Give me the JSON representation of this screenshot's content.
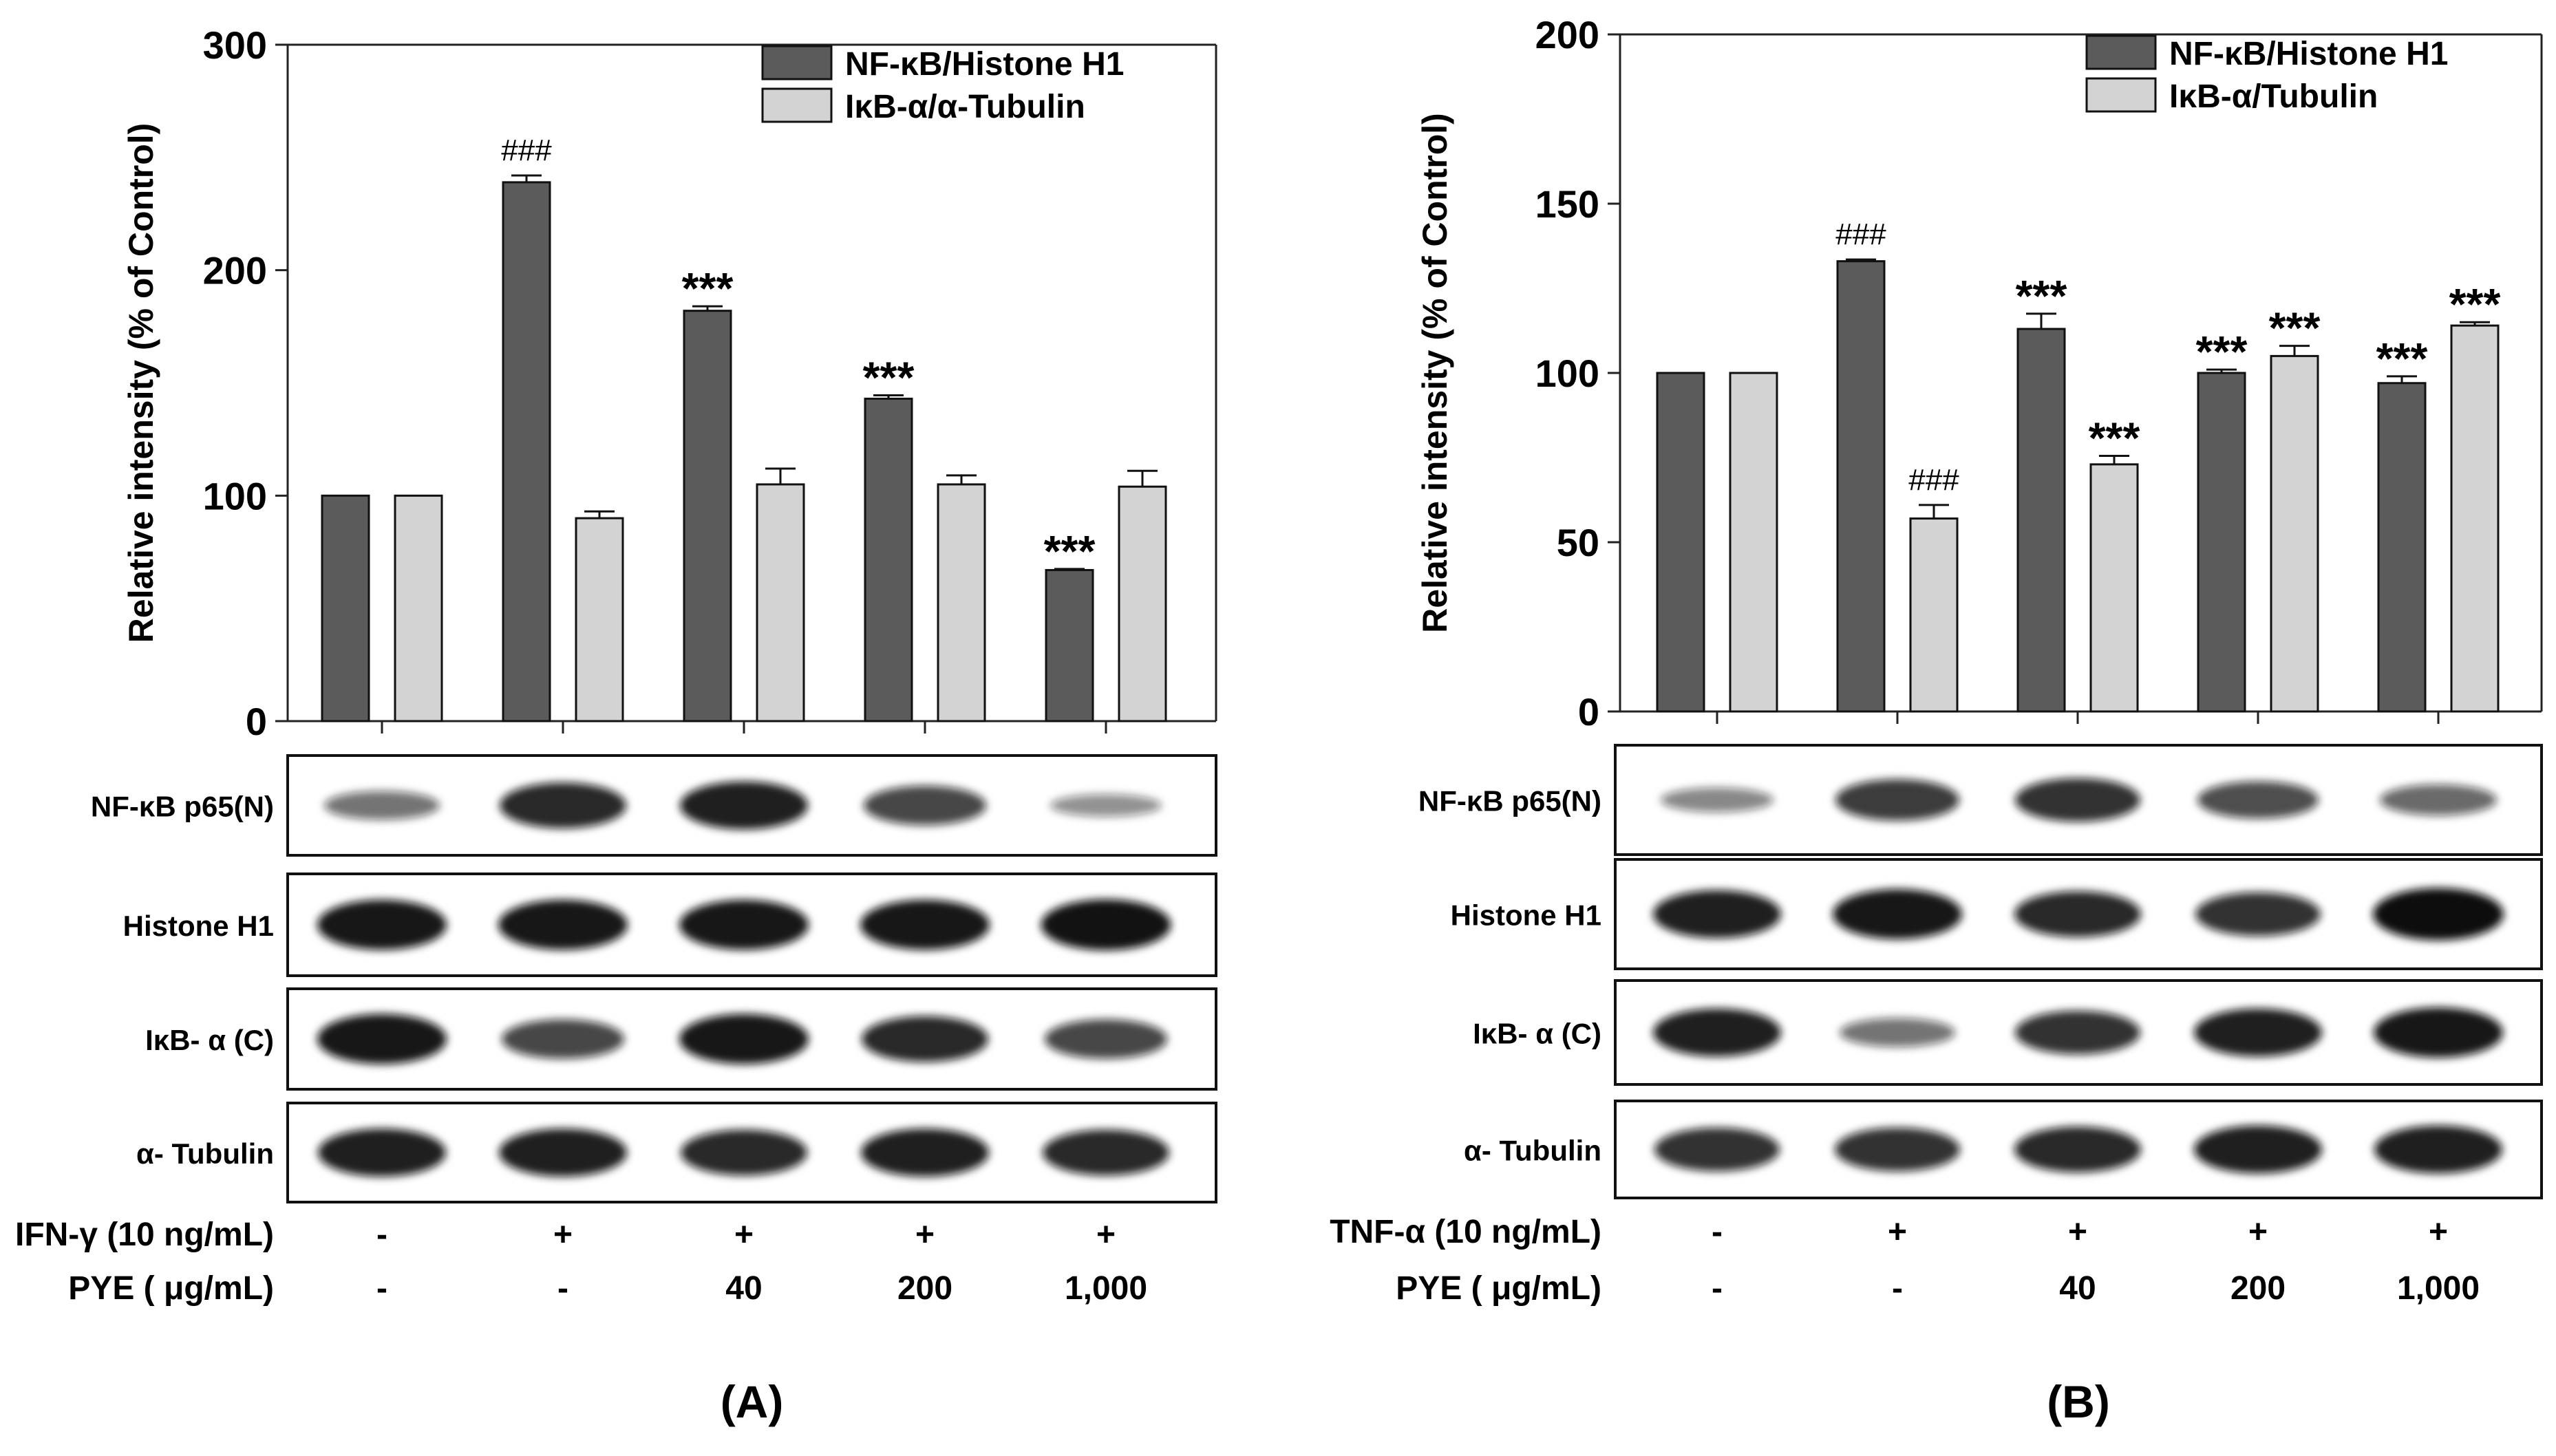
{
  "colors": {
    "dark_bar": "#5b5b5b",
    "light_bar": "#d3d3d3",
    "band": "#111111"
  },
  "panels": [
    {
      "id": "A",
      "label": "(A)",
      "chart_data": {
        "type": "bar",
        "ylabel": "Relative intensity (% of Control)",
        "ylim": [
          0,
          300
        ],
        "yticks": [
          "0",
          "100",
          "200",
          "300"
        ],
        "grid": false,
        "legend_position": "top-right",
        "categories": [
          "-/-",
          "+/-",
          "+/40",
          "+/200",
          "+/1,000"
        ],
        "series": [
          {
            "name": "NF-κB/Histone H1",
            "values": [
              100,
              239,
              182,
              143,
              67
            ],
            "errors": [
              0,
              3,
              2,
              1.5,
              0.5
            ],
            "annotations": [
              "",
              "###",
              "***",
              "***",
              "***"
            ]
          },
          {
            "name": "IκB-α/α-Tubulin",
            "values": [
              100,
              90,
              105,
              105,
              104
            ],
            "errors": [
              0,
              3,
              7,
              4,
              7
            ],
            "annotations": [
              "",
              "",
              "",
              "",
              ""
            ]
          }
        ]
      },
      "blot": {
        "rows": [
          {
            "label": "NF-κB p65(N)",
            "intensity": [
              0.45,
              0.85,
              0.9,
              0.7,
              0.3
            ]
          },
          {
            "label": "Histone H1",
            "intensity": [
              0.95,
              0.95,
              0.95,
              0.95,
              0.97
            ]
          },
          {
            "label": "IκB- α (C)",
            "intensity": [
              0.95,
              0.7,
              0.95,
              0.85,
              0.7
            ]
          },
          {
            "label": "α- Tubulin",
            "intensity": [
              0.9,
              0.9,
              0.85,
              0.9,
              0.85
            ]
          }
        ]
      },
      "treatments": [
        {
          "label": "IFN-γ (10 ng/mL)",
          "values": [
            "-",
            "+",
            "+",
            "+",
            "+"
          ]
        },
        {
          "label": "PYE ( μg/mL)",
          "values": [
            "-",
            "-",
            "40",
            "200",
            "1,000"
          ]
        }
      ]
    },
    {
      "id": "B",
      "label": "(B)",
      "chart_data": {
        "type": "bar",
        "ylabel": "Relative intensity (% of Control)",
        "ylim": [
          0,
          200
        ],
        "yticks": [
          "0",
          "50",
          "100",
          "150",
          "200"
        ],
        "grid": false,
        "legend_position": "top-right",
        "categories": [
          "-/-",
          "+/-",
          "+/40",
          "+/200",
          "+/1,000"
        ],
        "series": [
          {
            "name": "NF-κB/Histone H1",
            "values": [
              100,
              133,
              113,
              100,
              97
            ],
            "errors": [
              0,
              0.5,
              4.5,
              1,
              2
            ],
            "annotations": [
              "",
              "###",
              "***",
              "***",
              "***"
            ]
          },
          {
            "name": "IκB-α/Tubulin",
            "values": [
              100,
              57,
              73,
              105,
              114
            ],
            "errors": [
              0,
              4,
              2.5,
              3,
              1
            ],
            "annotations": [
              "",
              "###",
              "***",
              "***",
              "***"
            ]
          }
        ]
      },
      "blot": {
        "rows": [
          {
            "label": "NF-κB p65(N)",
            "intensity": [
              0.35,
              0.75,
              0.8,
              0.65,
              0.5
            ]
          },
          {
            "label": "Histone H1",
            "intensity": [
              0.9,
              0.95,
              0.85,
              0.8,
              1.0
            ]
          },
          {
            "label": "IκB- α (C)",
            "intensity": [
              0.9,
              0.45,
              0.8,
              0.9,
              0.95
            ]
          },
          {
            "label": "α- Tubulin",
            "intensity": [
              0.8,
              0.8,
              0.85,
              0.9,
              0.9
            ]
          }
        ]
      },
      "treatments": [
        {
          "label": "TNF-α (10 ng/mL)",
          "values": [
            "-",
            "+",
            "+",
            "+",
            "+"
          ]
        },
        {
          "label": "PYE ( μg/mL)",
          "values": [
            "-",
            "-",
            "40",
            "200",
            "1,000"
          ]
        }
      ]
    }
  ]
}
